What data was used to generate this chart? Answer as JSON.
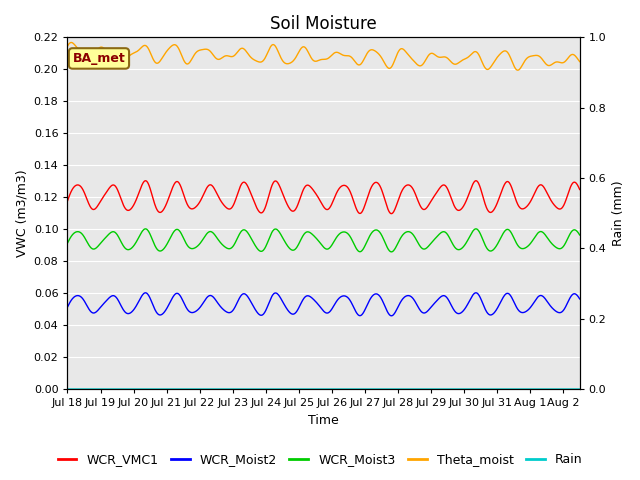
{
  "title": "Soil Moisture",
  "xlabel": "Time",
  "ylabel_left": "VWC (m3/m3)",
  "ylabel_right": "Rain (mm)",
  "ylim_left": [
    0.0,
    0.22
  ],
  "ylim_right": [
    0.0,
    1.0
  ],
  "yticks_left": [
    0.0,
    0.02,
    0.04,
    0.06,
    0.08,
    0.1,
    0.12,
    0.14,
    0.16,
    0.18,
    0.2,
    0.22
  ],
  "yticks_right": [
    0.0,
    0.2,
    0.4,
    0.6,
    0.8,
    1.0
  ],
  "annotation_text": "BA_met",
  "annotation_color": "#8B0000",
  "annotation_bg": "#FFFF99",
  "annotation_border": "#8B6914",
  "background_color": "#E8E8E8",
  "line_colors": {
    "WCR_VMC1": "#FF0000",
    "WCR_Moist2": "#0000FF",
    "WCR_Moist3": "#00CC00",
    "Theta_moist": "#FFA500",
    "Rain": "#00CCCC"
  },
  "n_days": 15.5,
  "WCR_VMC1_base": 0.12,
  "WCR_VMC1_amp": 0.0085,
  "WCR_Moist2_base": 0.053,
  "WCR_Moist2_amp": 0.006,
  "WCR_Moist3_base": 0.093,
  "WCR_Moist3_amp": 0.006,
  "Theta_moist_base": 0.211,
  "Theta_moist_amp": 0.004,
  "Theta_moist_trend": -0.006,
  "Rain_base": 0.0,
  "xticklabels": [
    "Jul 18",
    "Jul 19",
    "Jul 20",
    "Jul 21",
    "Jul 22",
    "Jul 23",
    "Jul 24",
    "Jul 25",
    "Jul 26",
    "Jul 27",
    "Jul 28",
    "Jul 29",
    "Jul 30",
    "Jul 31",
    "Aug 1",
    "Aug 2"
  ],
  "title_fontsize": 12,
  "axis_fontsize": 9,
  "tick_fontsize": 8,
  "legend_fontsize": 9
}
